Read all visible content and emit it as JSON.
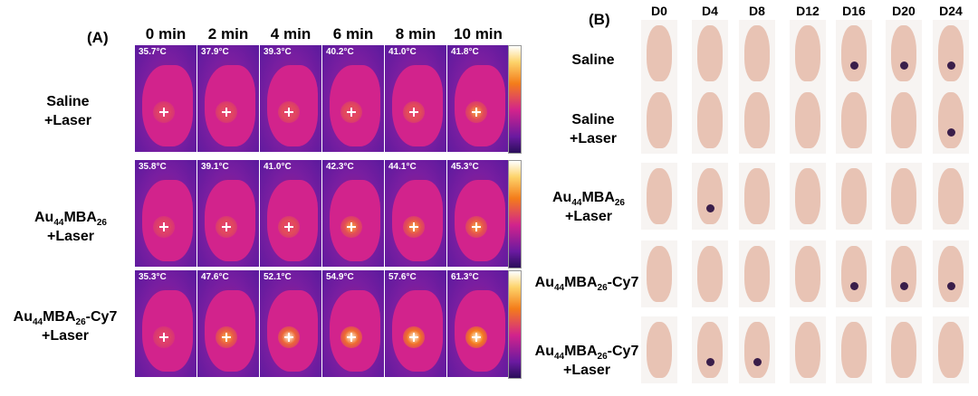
{
  "panel_a": {
    "label": "(A)",
    "times": [
      "0 min",
      "2 min",
      "4 min",
      "6 min",
      "8 min",
      "10 min"
    ],
    "rows": [
      {
        "label_main": "Saline",
        "label_sub": "",
        "label_suffix": "",
        "label_line2": "+Laser",
        "temps": [
          "35.7°C",
          "37.9°C",
          "39.3°C",
          "40.2°C",
          "41.0°C",
          "41.8°C"
        ]
      },
      {
        "label_main": "Au",
        "label_sub": "44",
        "label_mid": "MBA",
        "label_sub2": "26",
        "label_suffix": "",
        "label_line2": "+Laser",
        "temps": [
          "35.8°C",
          "39.1°C",
          "41.0°C",
          "42.3°C",
          "44.1°C",
          "45.3°C"
        ]
      },
      {
        "label_main": "Au",
        "label_sub": "44",
        "label_mid": "MBA",
        "label_sub2": "26",
        "label_suffix": "-Cy7",
        "label_line2": "+Laser",
        "temps": [
          "35.3°C",
          "47.6°C",
          "52.1°C",
          "54.9°C",
          "57.6°C",
          "61.3°C"
        ]
      }
    ]
  },
  "panel_b": {
    "label": "(B)",
    "days": [
      "D0",
      "D4",
      "D8",
      "D12",
      "D16",
      "D20",
      "D24"
    ],
    "rows": [
      {
        "line1": "Saline",
        "line2": ""
      },
      {
        "line1": "Saline",
        "line2": "+Laser"
      },
      {
        "au": "Au",
        "sub1": "44",
        "mba": "MBA",
        "sub2": "26",
        "suffix": "",
        "line2": "+Laser"
      },
      {
        "au": "Au",
        "sub1": "44",
        "mba": "MBA",
        "sub2": "26",
        "suffix": "-Cy7",
        "line2": ""
      },
      {
        "au": "Au",
        "sub1": "44",
        "mba": "MBA",
        "sub2": "26",
        "suffix": "-Cy7",
        "line2": "+Laser"
      }
    ]
  }
}
